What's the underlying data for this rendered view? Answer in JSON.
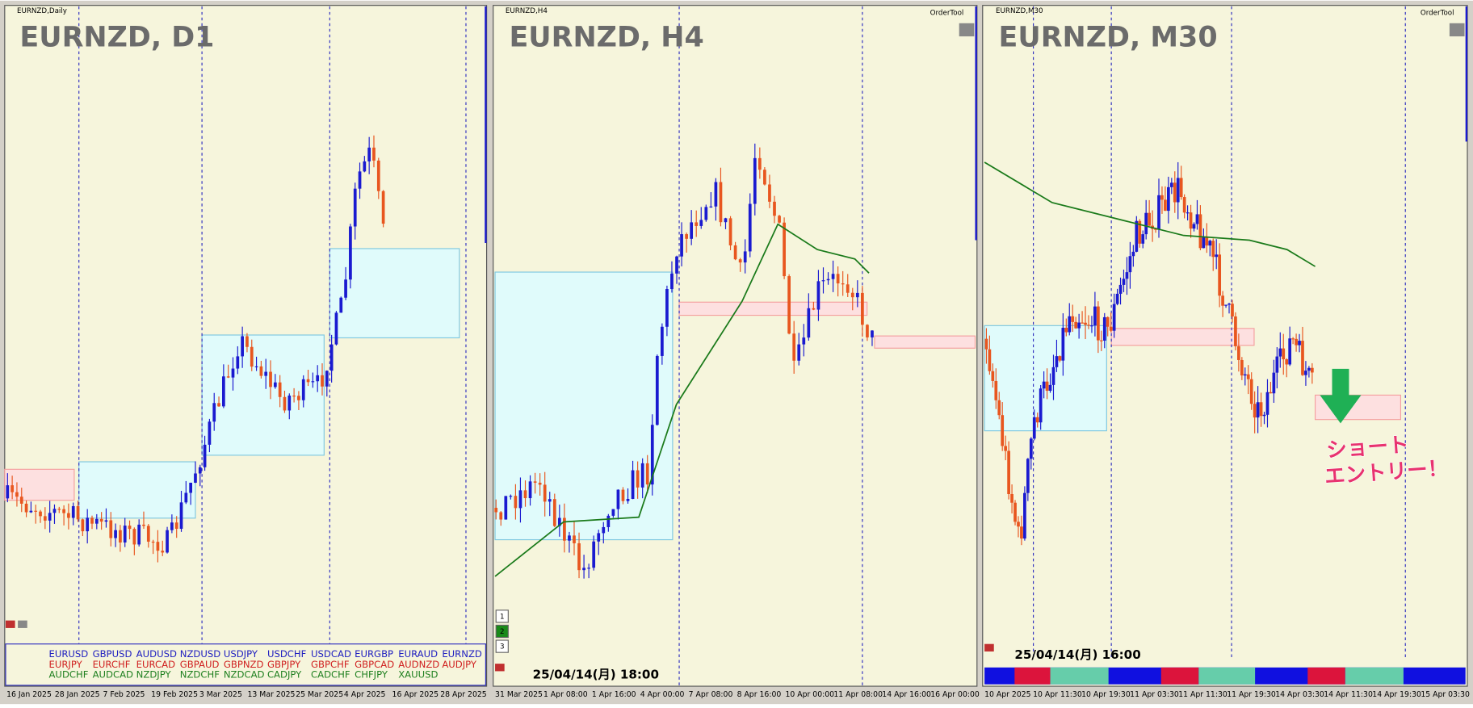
{
  "panels": [
    {
      "window_title": "EURNZD,Daily",
      "symbol_label": "EURNZD, D1",
      "dates": [
        "16 Jan 2025",
        "28 Jan 2025",
        "7 Feb 2025",
        "19 Feb 2025",
        "3 Mar 2025",
        "13 Mar 2025",
        "25 Mar 2025",
        "4 Apr 2025",
        "16 Apr 2025",
        "28 Apr 2025"
      ]
    },
    {
      "window_title": "EURNZD,H4",
      "tool": "OrderTool",
      "symbol_label": "EURNZD, H4",
      "timestamp": "25/04/14(月) 18:00",
      "page_buttons": [
        "1",
        "2",
        "3"
      ],
      "dates": [
        "31 Mar 2025",
        "1 Apr 08:00",
        "1 Apr 16:00",
        "4 Apr 00:00",
        "7 Apr 08:00",
        "8 Apr 16:00",
        "10 Apr 00:00",
        "11 Apr 08:00",
        "14 Apr 16:00",
        "16 Apr 00:00"
      ]
    },
    {
      "window_title": "EURNZD,M30",
      "tool": "OrderTool",
      "symbol_label": "EURNZD, M30",
      "timestamp": "25/04/14(月) 16:00",
      "annotation": [
        "ショート",
        "エントリー！"
      ],
      "dates": [
        "10 Apr 2025",
        "10 Apr 11:30",
        "10 Apr 19:30",
        "11 Apr 03:30",
        "11 Apr 11:30",
        "11 Apr 19:30",
        "14 Apr 03:30",
        "14 Apr 11:30",
        "14 Apr 19:30",
        "15 Apr 03:30"
      ]
    }
  ],
  "symbol_buttons": [
    [
      "EURUSD",
      "GBPUSD",
      "AUDUSD",
      "NZDUSD",
      "USDJPY",
      "USDCHF",
      "USDCAD",
      "EURGBP",
      "EURAUD",
      "EURNZD"
    ],
    [
      "EURJPY",
      "EURCHF",
      "EURCAD",
      "GBPAUD",
      "GBPNZD",
      "GBPJPY",
      "GBPCHF",
      "GBPCAD",
      "AUDNZD",
      "AUDJPY"
    ],
    [
      "AUDCHF",
      "AUDCAD",
      "NZDJPY",
      "NZDCHF",
      "NZDCAD",
      "CADJPY",
      "CADCHF",
      "CHFJPY",
      "XAUUSD"
    ]
  ]
}
